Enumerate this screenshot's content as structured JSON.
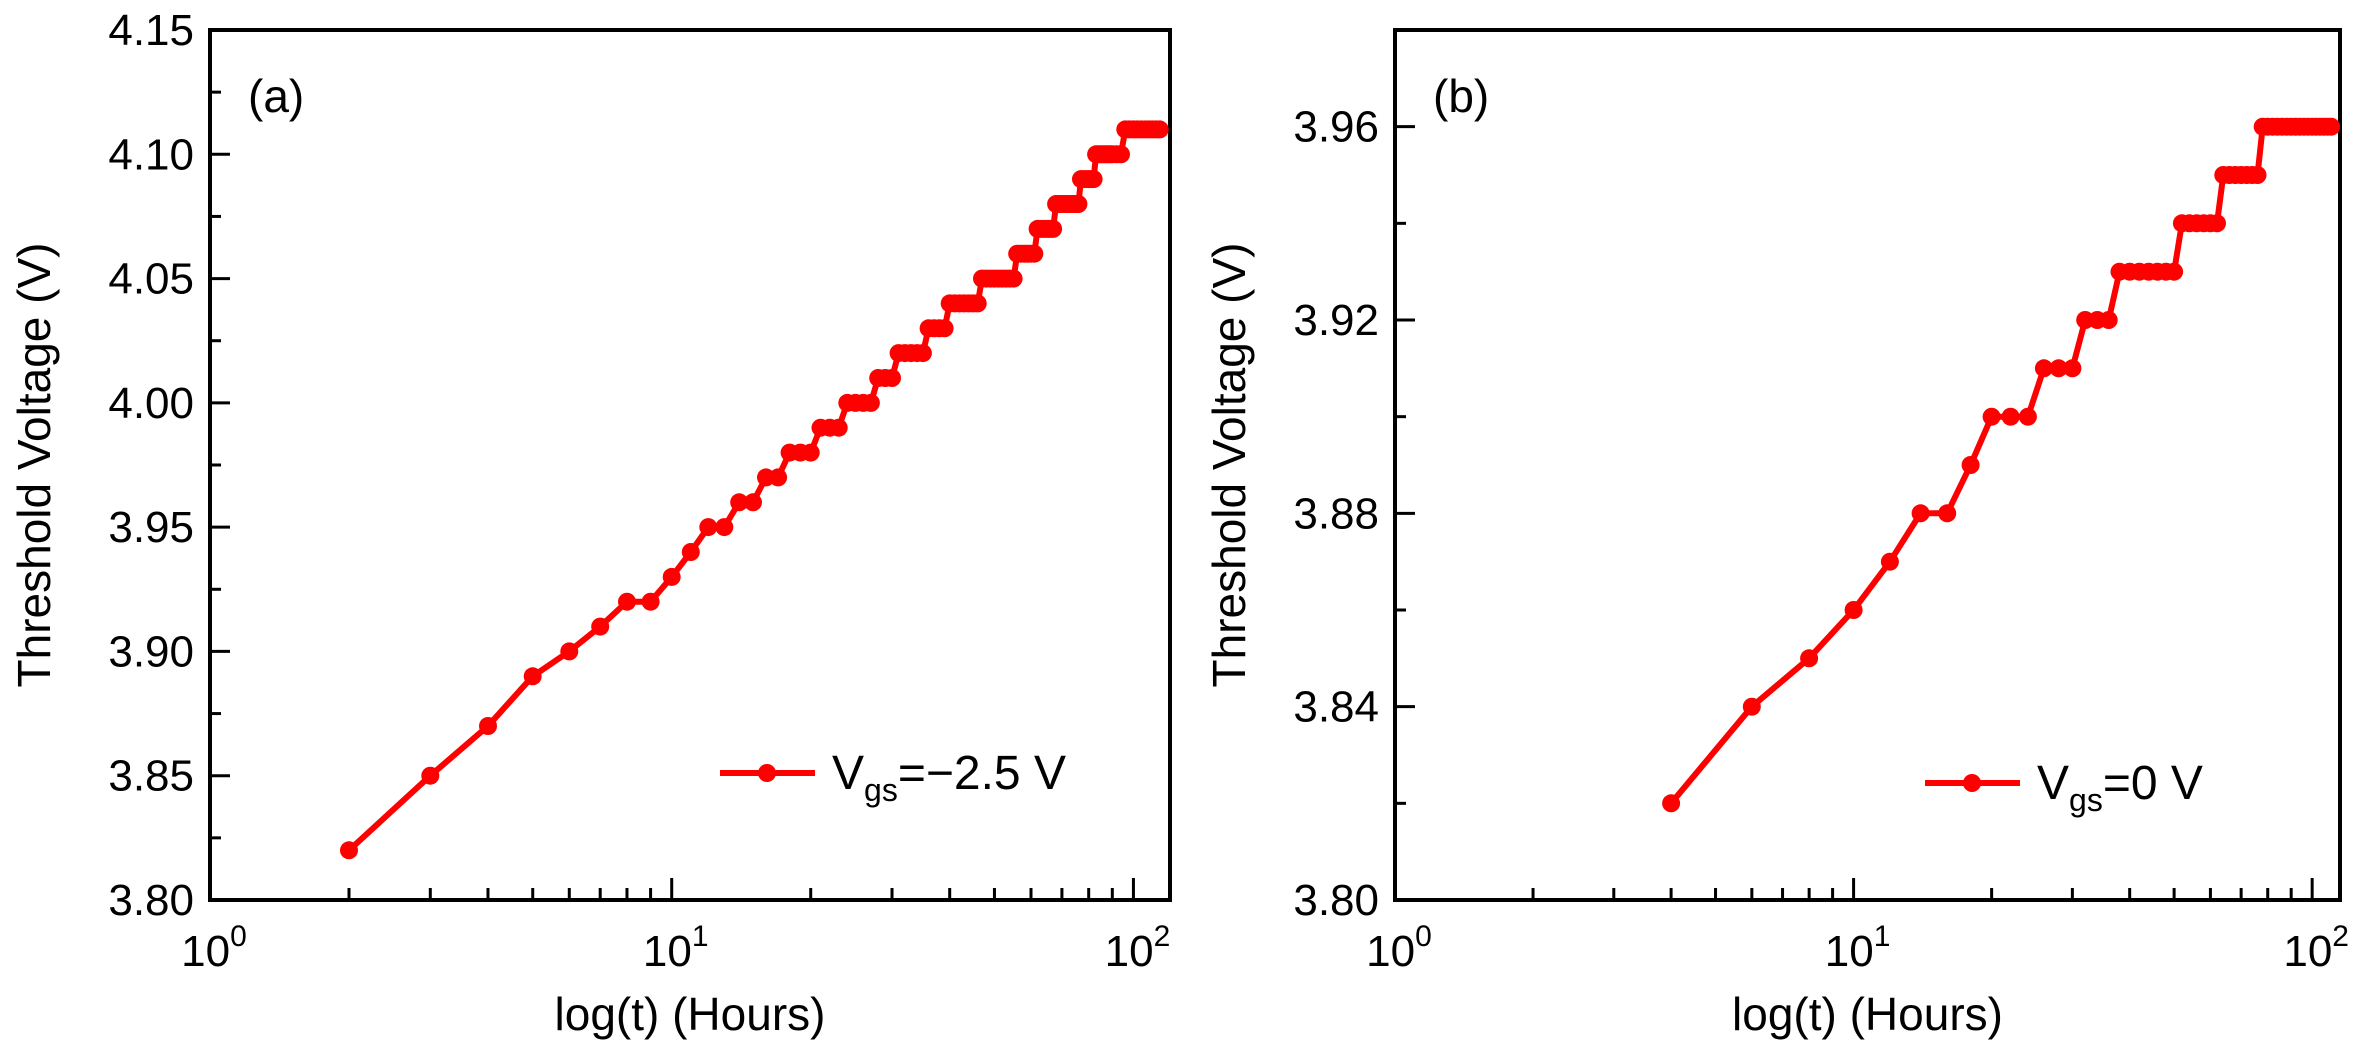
{
  "colors": {
    "series": "#ff0000",
    "axis": "#000000",
    "background": "#ffffff"
  },
  "chart_data": [
    {
      "type": "line",
      "panel_label": "(a)",
      "xlabel": "log(t) (Hours)",
      "ylabel": "Threshold Voltage (V)",
      "xscale": "log",
      "xlim": [
        1,
        120
      ],
      "ylim": [
        3.8,
        4.15
      ],
      "x_tick_labels": [
        {
          "value": 1,
          "base": "10",
          "exp": "0"
        },
        {
          "value": 10,
          "base": "10",
          "exp": "1"
        },
        {
          "value": 100,
          "base": "10",
          "exp": "2"
        }
      ],
      "y_ticks": [
        3.8,
        3.85,
        3.9,
        3.95,
        4.0,
        4.05,
        4.1,
        4.15
      ],
      "y_tick_labels": [
        "3.80",
        "3.85",
        "3.90",
        "3.95",
        "4.00",
        "4.05",
        "4.10",
        "4.15"
      ],
      "y_minor_step": 0.025,
      "legend_position": "bottom-right",
      "series": [
        {
          "name": "Vgs=−2.5 V",
          "legend_main": "V",
          "legend_sub": "gs",
          "legend_rest": "=−2.5 V",
          "points": [
            [
              2,
              3.82
            ],
            [
              3,
              3.85
            ],
            [
              4,
              3.87
            ],
            [
              5,
              3.89
            ],
            [
              6,
              3.9
            ],
            [
              7,
              3.91
            ],
            [
              8,
              3.92
            ],
            [
              9,
              3.92
            ],
            [
              10,
              3.93
            ],
            [
              11,
              3.94
            ],
            [
              12,
              3.95
            ],
            [
              13,
              3.95
            ],
            [
              14,
              3.96
            ],
            [
              15,
              3.96
            ],
            [
              16,
              3.97
            ],
            [
              17,
              3.97
            ],
            [
              18,
              3.98
            ],
            [
              19,
              3.98
            ],
            [
              20,
              3.98
            ],
            [
              21,
              3.99
            ],
            [
              22,
              3.99
            ],
            [
              23,
              3.99
            ],
            [
              24,
              4.0
            ],
            [
              25,
              4.0
            ],
            [
              26,
              4.0
            ],
            [
              27,
              4.0
            ],
            [
              28,
              4.01
            ],
            [
              29,
              4.01
            ],
            [
              30,
              4.01
            ],
            [
              31,
              4.02
            ],
            [
              32,
              4.02
            ],
            [
              33,
              4.02
            ],
            [
              34,
              4.02
            ],
            [
              35,
              4.02
            ],
            [
              36,
              4.03
            ],
            [
              37,
              4.03
            ],
            [
              38,
              4.03
            ],
            [
              39,
              4.03
            ],
            [
              40,
              4.04
            ],
            [
              41,
              4.04
            ],
            [
              42,
              4.04
            ],
            [
              43,
              4.04
            ],
            [
              44,
              4.04
            ],
            [
              45,
              4.04
            ],
            [
              46,
              4.04
            ],
            [
              47,
              4.05
            ],
            [
              48,
              4.05
            ],
            [
              49,
              4.05
            ],
            [
              50,
              4.05
            ],
            [
              51,
              4.05
            ],
            [
              52,
              4.05
            ],
            [
              53,
              4.05
            ],
            [
              54,
              4.05
            ],
            [
              55,
              4.05
            ],
            [
              56,
              4.06
            ],
            [
              57,
              4.06
            ],
            [
              58,
              4.06
            ],
            [
              59,
              4.06
            ],
            [
              60,
              4.06
            ],
            [
              61,
              4.06
            ],
            [
              62,
              4.07
            ],
            [
              63,
              4.07
            ],
            [
              64,
              4.07
            ],
            [
              65,
              4.07
            ],
            [
              66,
              4.07
            ],
            [
              67,
              4.07
            ],
            [
              68,
              4.08
            ],
            [
              69,
              4.08
            ],
            [
              70,
              4.08
            ],
            [
              71,
              4.08
            ],
            [
              72,
              4.08
            ],
            [
              73,
              4.08
            ],
            [
              74,
              4.08
            ],
            [
              75,
              4.08
            ],
            [
              76,
              4.08
            ],
            [
              77,
              4.09
            ],
            [
              78,
              4.09
            ],
            [
              79,
              4.09
            ],
            [
              80,
              4.09
            ],
            [
              81,
              4.09
            ],
            [
              82,
              4.09
            ],
            [
              83,
              4.1
            ],
            [
              84,
              4.1
            ],
            [
              85,
              4.1
            ],
            [
              86,
              4.1
            ],
            [
              87,
              4.1
            ],
            [
              88,
              4.1
            ],
            [
              89,
              4.1
            ],
            [
              90,
              4.1
            ],
            [
              92,
              4.1
            ],
            [
              94,
              4.1
            ],
            [
              96,
              4.11
            ],
            [
              98,
              4.11
            ],
            [
              100,
              4.11
            ],
            [
              102,
              4.11
            ],
            [
              104,
              4.11
            ],
            [
              106,
              4.11
            ],
            [
              108,
              4.11
            ],
            [
              110,
              4.11
            ],
            [
              112,
              4.11
            ],
            [
              114,
              4.11
            ]
          ]
        }
      ]
    },
    {
      "type": "line",
      "panel_label": "(b)",
      "xlabel": "log(t) (Hours)",
      "ylabel": "Threshold Voltage (V)",
      "xscale": "log",
      "xlim": [
        1,
        115
      ],
      "ylim": [
        3.8,
        3.98
      ],
      "x_tick_labels": [
        {
          "value": 1,
          "base": "10",
          "exp": "0"
        },
        {
          "value": 10,
          "base": "10",
          "exp": "1"
        },
        {
          "value": 100,
          "base": "10",
          "exp": "2"
        }
      ],
      "y_ticks": [
        3.8,
        3.84,
        3.88,
        3.92,
        3.96
      ],
      "y_tick_labels": [
        "3.80",
        "3.84",
        "3.88",
        "3.92",
        "3.96"
      ],
      "y_minor_step": 0.02,
      "legend_position": "bottom-right",
      "series": [
        {
          "name": "Vgs=0 V",
          "legend_main": "V",
          "legend_sub": "gs",
          "legend_rest": "=0 V",
          "points": [
            [
              4,
              3.82
            ],
            [
              6,
              3.84
            ],
            [
              8,
              3.85
            ],
            [
              10,
              3.86
            ],
            [
              12,
              3.87
            ],
            [
              14,
              3.88
            ],
            [
              16,
              3.88
            ],
            [
              18,
              3.89
            ],
            [
              20,
              3.9
            ],
            [
              22,
              3.9
            ],
            [
              24,
              3.9
            ],
            [
              26,
              3.91
            ],
            [
              28,
              3.91
            ],
            [
              30,
              3.91
            ],
            [
              32,
              3.92
            ],
            [
              34,
              3.92
            ],
            [
              36,
              3.92
            ],
            [
              38,
              3.93
            ],
            [
              40,
              3.93
            ],
            [
              42,
              3.93
            ],
            [
              44,
              3.93
            ],
            [
              46,
              3.93
            ],
            [
              48,
              3.93
            ],
            [
              50,
              3.93
            ],
            [
              52,
              3.94
            ],
            [
              54,
              3.94
            ],
            [
              56,
              3.94
            ],
            [
              58,
              3.94
            ],
            [
              60,
              3.94
            ],
            [
              62,
              3.94
            ],
            [
              64,
              3.95
            ],
            [
              66,
              3.95
            ],
            [
              68,
              3.95
            ],
            [
              70,
              3.95
            ],
            [
              72,
              3.95
            ],
            [
              74,
              3.95
            ],
            [
              76,
              3.95
            ],
            [
              78,
              3.96
            ],
            [
              80,
              3.96
            ],
            [
              82,
              3.96
            ],
            [
              84,
              3.96
            ],
            [
              86,
              3.96
            ],
            [
              88,
              3.96
            ],
            [
              90,
              3.96
            ],
            [
              92,
              3.96
            ],
            [
              94,
              3.96
            ],
            [
              96,
              3.96
            ],
            [
              98,
              3.96
            ],
            [
              100,
              3.96
            ],
            [
              102,
              3.96
            ],
            [
              104,
              3.96
            ],
            [
              106,
              3.96
            ],
            [
              108,
              3.96
            ],
            [
              110,
              3.96
            ]
          ]
        }
      ]
    }
  ]
}
